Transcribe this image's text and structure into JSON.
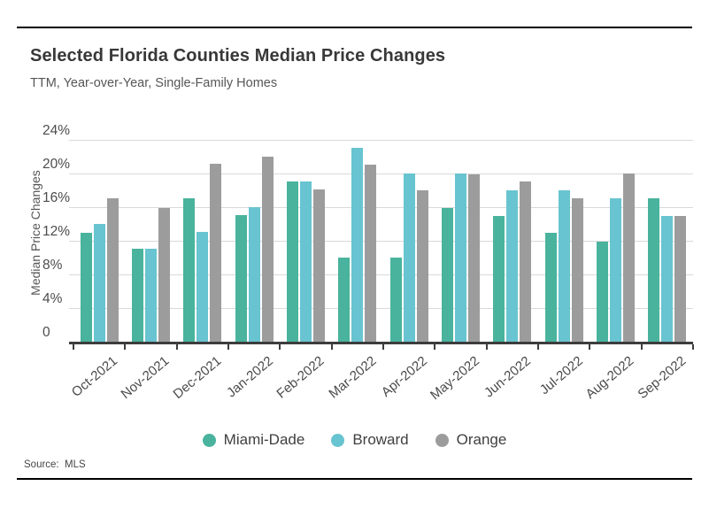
{
  "header": {
    "title": "Selected Florida Counties Median Price Changes",
    "subtitle": "TTM, Year-over-Year, Single-Family Homes"
  },
  "source_note": "Source:  MLS",
  "colors": {
    "miami_dade": "#49b39d",
    "broward": "#68c4d0",
    "orange": "#9c9c9c",
    "gridline": "#d9d9d9",
    "axis": "#3d3d3d",
    "rule": "#000000"
  },
  "chart_data": {
    "type": "bar",
    "title": "Selected Florida Counties Median Price Changes",
    "subtitle": "TTM, Year-over-Year, Single-Family Homes",
    "xlabel": "",
    "ylabel": "Median Price Changes",
    "ylim": [
      0,
      24
    ],
    "grid": true,
    "legend_position": "bottom",
    "yticks": [
      {
        "value": 0,
        "label": "0"
      },
      {
        "value": 4,
        "label": "4%"
      },
      {
        "value": 8,
        "label": "8%"
      },
      {
        "value": 12,
        "label": "12%"
      },
      {
        "value": 16,
        "label": "16%"
      },
      {
        "value": 20,
        "label": "20%"
      },
      {
        "value": 24,
        "label": "24%"
      }
    ],
    "categories": [
      "Oct-2021",
      "Nov-2021",
      "Dec-2021",
      "Jan-2022",
      "Feb-2022",
      "Mar-2022",
      "Apr-2022",
      "May-2022",
      "Jun-2022",
      "Jul-2022",
      "Aug-2022",
      "Sep-2022"
    ],
    "series": [
      {
        "name": "Miami-Dade",
        "color": "#49b39d",
        "values": [
          12.9,
          11.0,
          17.0,
          15.0,
          19.0,
          10.0,
          10.0,
          15.9,
          14.9,
          12.9,
          11.9,
          17.0
        ]
      },
      {
        "name": "Broward",
        "color": "#68c4d0",
        "values": [
          14.0,
          11.0,
          13.0,
          16.0,
          19.0,
          23.0,
          20.0,
          20.0,
          18.0,
          18.0,
          17.0,
          14.9
        ]
      },
      {
        "name": "Orange",
        "color": "#9c9c9c",
        "values": [
          17.0,
          15.9,
          21.1,
          22.0,
          18.1,
          21.0,
          18.0,
          19.9,
          19.0,
          17.0,
          20.0,
          14.9
        ]
      }
    ]
  }
}
